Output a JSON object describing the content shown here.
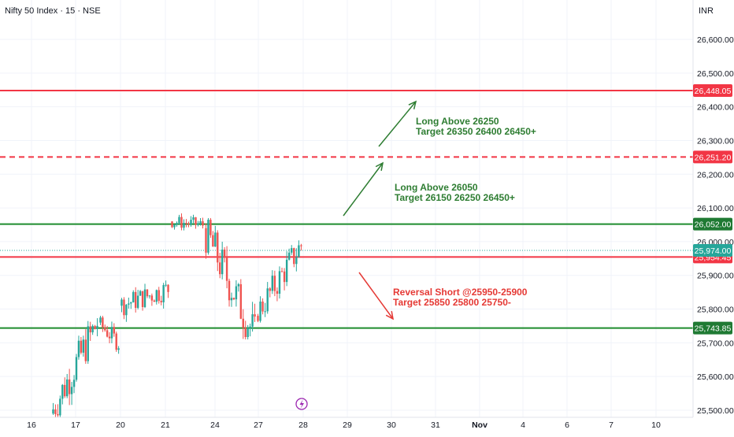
{
  "header": {
    "title": "Nifty 50 Index · 15 · NSE",
    "currency": "INR"
  },
  "colors": {
    "red": "#f23645",
    "green": "#1e8c2e",
    "green_badge": "#1f7a33",
    "teal": "#26a69a",
    "candle_up": "#26a69a",
    "candle_down": "#ef5350",
    "annot_green": "#2e7d32",
    "annot_red": "#e53935",
    "ref_line": "#26a69a"
  },
  "chart_data": {
    "type": "candlestick",
    "ylim": [
      25490,
      26680
    ],
    "y_ticks": [
      {
        "value": 25500,
        "label": "25,500.00"
      },
      {
        "value": 25600,
        "label": "25,600.00"
      },
      {
        "value": 25700,
        "label": "25,700.00"
      },
      {
        "value": 25800,
        "label": "25,800.00"
      },
      {
        "value": 25900,
        "label": "25,900.00"
      },
      {
        "value": 26000,
        "label": "26,000.00"
      },
      {
        "value": 26100,
        "label": "26,100.00"
      },
      {
        "value": 26200,
        "label": "26,200.00"
      },
      {
        "value": 26300,
        "label": "26,300.00"
      },
      {
        "value": 26400,
        "label": "26,400.00"
      },
      {
        "value": 26500,
        "label": "26,500.00"
      },
      {
        "value": 26600,
        "label": "26,600.00"
      }
    ],
    "x_ticks": [
      {
        "label": "16",
        "bold": false
      },
      {
        "label": "17",
        "bold": false
      },
      {
        "label": "20",
        "bold": false
      },
      {
        "label": "21",
        "bold": false
      },
      {
        "label": "24",
        "bold": false
      },
      {
        "label": "27",
        "bold": false
      },
      {
        "label": "28",
        "bold": false
      },
      {
        "label": "29",
        "bold": false
      },
      {
        "label": "30",
        "bold": false
      },
      {
        "label": "31",
        "bold": false
      },
      {
        "label": "Nov",
        "bold": true
      },
      {
        "label": "4",
        "bold": false
      },
      {
        "label": "6",
        "bold": false
      },
      {
        "label": "7",
        "bold": false
      },
      {
        "label": "10",
        "bold": false
      }
    ],
    "levels": [
      {
        "value": 26448.05,
        "label": "26,448.05",
        "color": "red",
        "style": "solid"
      },
      {
        "value": 26251.2,
        "label": "26,251.20",
        "color": "red",
        "style": "dashed"
      },
      {
        "value": 26052.0,
        "label": "26,052.00",
        "color": "green",
        "style": "solid"
      },
      {
        "value": 25954.45,
        "label": "25,954.45",
        "color": "red",
        "style": "solid"
      },
      {
        "value": 25743.85,
        "label": "25,743.85",
        "color": "green",
        "style": "solid"
      }
    ],
    "last_price": {
      "value": 25974.0,
      "label": "25,974.00"
    },
    "annotations": [
      {
        "lines": [
          "Long Above 26250",
          "Target 26350 26400 26450+"
        ],
        "color": "green"
      },
      {
        "lines": [
          "Long Above 26050",
          "Target 26150 26250 26450+"
        ],
        "color": "green"
      },
      {
        "lines": [
          "Reversal Short @25950-25900",
          "Target 25850 25800 25750-"
        ],
        "color": "red"
      }
    ],
    "sessions": [
      {
        "open": 25490,
        "close": 25760,
        "low": 25480,
        "high": 25790
      },
      {
        "open": 25760,
        "close": 25700,
        "low": 25620,
        "high": 25780
      },
      {
        "open": 25810,
        "close": 25860,
        "low": 25750,
        "high": 25935
      },
      {
        "open": 26060,
        "close": 26050,
        "low": 26000,
        "high": 26110
      },
      {
        "open": 26040,
        "close": 25720,
        "low": 25710,
        "high": 26070
      },
      {
        "open": 25780,
        "close": 25990,
        "low": 25760,
        "high": 26010
      },
      {
        "open": 25960,
        "close": 25974,
        "low": 25940,
        "high": 26000
      }
    ]
  }
}
